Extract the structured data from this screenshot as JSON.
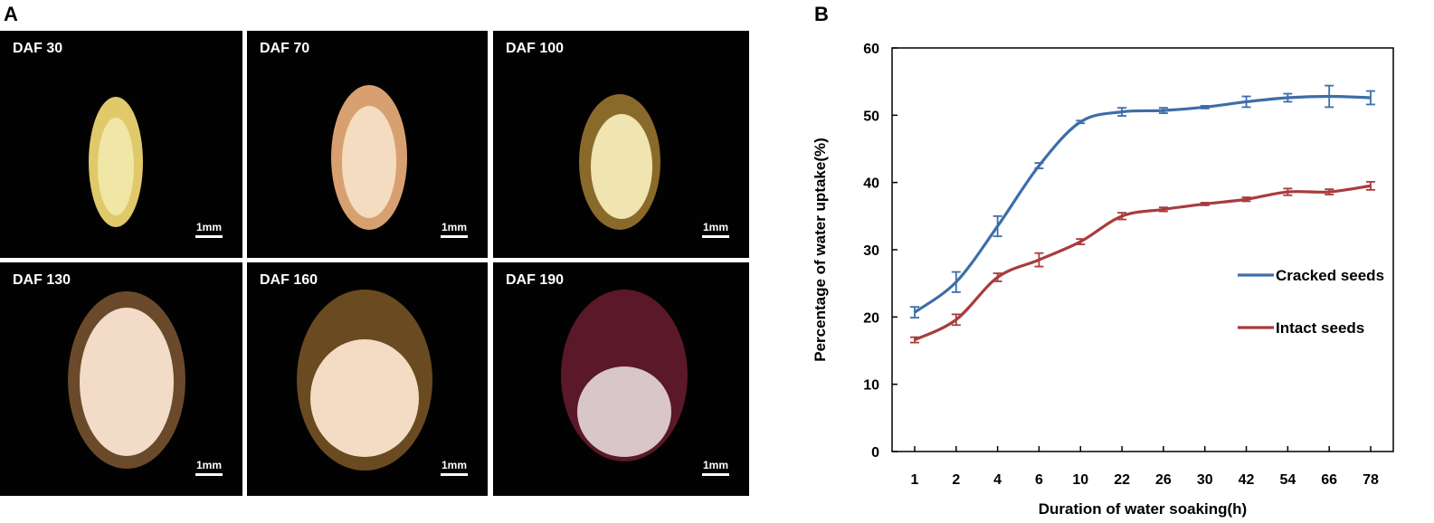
{
  "panels": {
    "a_label": "A",
    "b_label": "B"
  },
  "photos": [
    {
      "label": "DAF 30",
      "scale_label": "1mm",
      "tone": "#e0c96a",
      "inner": "#f0e6a6"
    },
    {
      "label": "DAF 70",
      "scale_label": "1mm",
      "tone": "#d8a070",
      "inner": "#f4dcc0"
    },
    {
      "label": "DAF 100",
      "scale_label": "1mm",
      "tone": "#8a6a2a",
      "inner": "#f0e4b0"
    },
    {
      "label": "DAF 130",
      "scale_label": "1mm",
      "tone": "#6a4a2a",
      "inner": "#f2dcc8"
    },
    {
      "label": "DAF 160",
      "scale_label": "1mm",
      "tone": "#6a4a20",
      "inner": "#f4dcc4"
    },
    {
      "label": "DAF 190",
      "scale_label": "1mm",
      "tone": "#5a1828",
      "inner": "#d8c6c8"
    }
  ],
  "chart_data": {
    "type": "line",
    "categories": [
      "1",
      "2",
      "4",
      "6",
      "10",
      "22",
      "26",
      "30",
      "42",
      "54",
      "66",
      "78"
    ],
    "series": [
      {
        "name": "Cracked seeds",
        "color": "#3c6ea8",
        "values": [
          20.7,
          25.2,
          33.5,
          42.5,
          49.0,
          50.5,
          50.7,
          51.2,
          52.0,
          52.6,
          52.8,
          52.6
        ],
        "errors": [
          0.8,
          1.5,
          1.5,
          0.4,
          0.2,
          0.6,
          0.4,
          0.2,
          0.8,
          0.6,
          1.6,
          1.0
        ]
      },
      {
        "name": "Intact seeds",
        "color": "#a83c3c",
        "values": [
          16.6,
          19.6,
          25.9,
          28.5,
          31.2,
          35.0,
          36.0,
          36.8,
          37.5,
          38.6,
          38.6,
          39.5
        ],
        "errors": [
          0.4,
          0.8,
          0.6,
          1.0,
          0.4,
          0.5,
          0.3,
          0.2,
          0.3,
          0.5,
          0.4,
          0.6
        ]
      }
    ],
    "title": "",
    "xlabel": "Duration of water soaking(h)",
    "ylabel": "Percentage of water uptake(%)",
    "ylim": [
      0,
      60
    ],
    "yticks": [
      "0",
      "10",
      "20",
      "30",
      "40",
      "50",
      "60"
    ],
    "legend": "center-right"
  }
}
